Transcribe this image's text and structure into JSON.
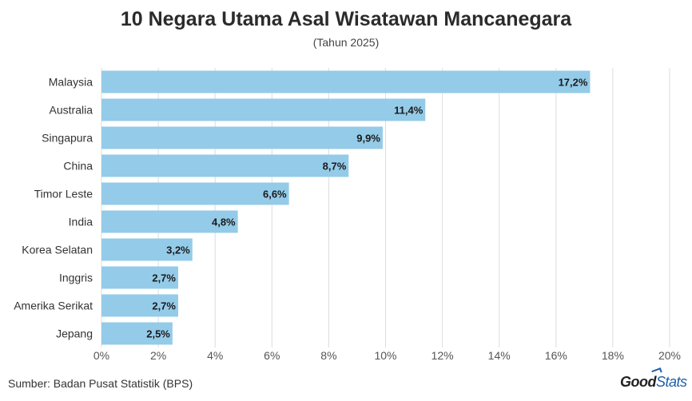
{
  "chart_data": {
    "type": "bar",
    "orientation": "horizontal",
    "title": "10 Negara Utama Asal Wisatawan Mancanegara",
    "subtitle": "(Tahun 2025)",
    "categories": [
      "Malaysia",
      "Australia",
      "Singapura",
      "China",
      "Timor Leste",
      "India",
      "Korea Selatan",
      "Inggris",
      "Amerika Serikat",
      "Jepang"
    ],
    "values": [
      17.2,
      11.4,
      9.9,
      8.7,
      6.6,
      4.8,
      3.2,
      2.7,
      2.7,
      2.5
    ],
    "data_labels": [
      "17,2%",
      "11,4%",
      "9,9%",
      "8,7%",
      "6,6%",
      "4,8%",
      "3,2%",
      "2,7%",
      "2,7%",
      "2,5%"
    ],
    "xlim": [
      0,
      20
    ],
    "x_ticks": [
      0,
      2,
      4,
      6,
      8,
      10,
      12,
      14,
      16,
      18,
      20
    ],
    "x_tick_labels": [
      "0%",
      "2%",
      "4%",
      "6%",
      "8%",
      "10%",
      "12%",
      "14%",
      "16%",
      "18%",
      "20%"
    ],
    "grid": "vertical",
    "legend": "none",
    "bar_color": "#94cbe8",
    "grid_color": "#dddddd"
  },
  "footer": {
    "source": "Sumber: Badan Pusat Statistik (BPS)",
    "logo_good": "Good",
    "logo_stats": "Stats"
  }
}
